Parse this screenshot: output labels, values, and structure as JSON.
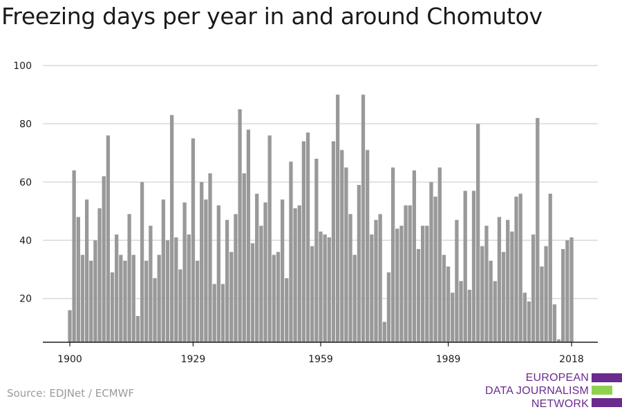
{
  "title": "Freezing days per year in and around Chomutov",
  "source": "Source: EDJNet / ECMWF",
  "logo": {
    "lines": [
      "EUROPEAN",
      "DATA JOURNALISM",
      "NETWORK"
    ],
    "colors": {
      "purple": "#6a2a8e",
      "green": "#8fd14f"
    }
  },
  "colors": {
    "bar": "#999999",
    "grid": "#d9d9d9",
    "axis": "#1a1a1a",
    "text": "#1a1a1a"
  },
  "chart_data": {
    "type": "bar",
    "title": "Freezing days per year in and around Chomutov",
    "xlabel": "",
    "ylabel": "",
    "ylim": [
      5,
      100
    ],
    "yticks": [
      20,
      40,
      60,
      80,
      100
    ],
    "xticks": [
      1900,
      1929,
      1959,
      1989,
      2018
    ],
    "grid": true,
    "x_start": 1900,
    "x_end": 2018,
    "values": [
      16,
      64,
      48,
      35,
      54,
      33,
      40,
      51,
      62,
      76,
      29,
      42,
      35,
      33,
      49,
      35,
      14,
      60,
      33,
      45,
      27,
      35,
      54,
      40,
      83,
      41,
      30,
      53,
      42,
      75,
      33,
      60,
      54,
      63,
      25,
      52,
      25,
      47,
      36,
      49,
      85,
      63,
      78,
      39,
      56,
      45,
      53,
      76,
      35,
      36,
      54,
      27,
      67,
      51,
      52,
      74,
      77,
      38,
      68,
      43,
      42,
      41,
      74,
      90,
      71,
      65,
      49,
      35,
      59,
      90,
      71,
      42,
      47,
      49,
      12,
      29,
      65,
      44,
      45,
      52,
      52,
      64,
      37,
      45,
      45,
      60,
      55,
      65,
      35,
      31,
      22,
      47,
      26,
      57,
      23,
      57,
      80,
      38,
      45,
      33,
      26,
      48,
      36,
      47,
      43,
      55,
      56,
      22,
      19,
      42,
      82,
      31,
      38,
      56,
      18,
      6,
      37,
      40,
      41
    ]
  }
}
